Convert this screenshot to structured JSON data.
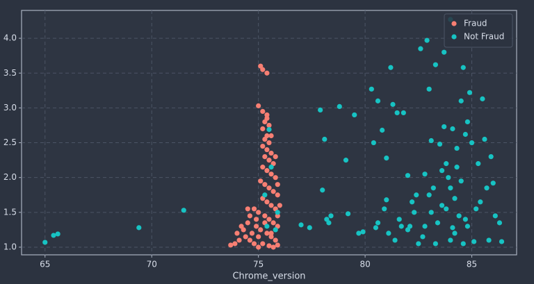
{
  "chart_data": {
    "type": "scatter",
    "xlabel": "Chrome_version",
    "xlim": [
      63.9,
      87.1
    ],
    "ylim": [
      0.89,
      4.4
    ],
    "xticks": [
      65,
      70,
      75,
      80,
      85
    ],
    "yticks": [
      {
        "value": 1,
        "label": "1.0"
      },
      1.5,
      {
        "value": 2,
        "label": "2.0"
      },
      2.5,
      {
        "value": 3,
        "label": "3.0"
      },
      3.5,
      {
        "value": 4,
        "label": "4.0"
      }
    ],
    "grid": true,
    "legend": "upper right",
    "series": [
      {
        "name": "Fraud",
        "color": "#f77f73",
        "x": [
          75.1,
          75.2,
          75.4,
          75.0,
          75.2,
          75.4,
          75.3,
          75.5,
          75.2,
          75.4,
          75.3,
          75.5,
          75.2,
          75.4,
          75.6,
          75.3,
          75.5,
          75.7,
          75.2,
          75.4,
          75.6,
          75.8,
          75.1,
          75.3,
          75.5,
          75.7,
          75.9,
          75.2,
          75.4,
          75.6,
          75.8,
          75.0,
          75.3,
          75.5,
          75.7,
          75.9,
          75.1,
          75.4,
          75.6,
          75.8,
          75.2,
          75.5,
          75.9,
          75.7,
          75.0,
          74.8,
          74.6,
          74.4,
          74.7,
          74.9,
          74.5,
          74.3,
          74.1,
          73.9,
          73.7,
          74.0,
          74.2,
          74.6,
          74.8,
          74.5,
          74.9,
          75.9,
          76.0,
          75.8,
          75.6,
          75.4,
          75.6,
          75.0,
          75.3,
          75.9
        ],
        "values": [
          3.6,
          3.55,
          3.5,
          3.03,
          2.95,
          2.9,
          2.8,
          2.75,
          2.7,
          2.6,
          2.55,
          2.5,
          2.45,
          2.4,
          2.35,
          2.3,
          2.25,
          2.2,
          2.15,
          2.1,
          2.05,
          2.0,
          1.95,
          1.9,
          1.85,
          1.8,
          1.75,
          1.7,
          1.65,
          1.6,
          1.55,
          1.5,
          1.45,
          1.4,
          1.35,
          1.3,
          1.25,
          1.2,
          1.15,
          1.1,
          1.05,
          1.02,
          1.03,
          1.0,
          1.0,
          1.05,
          1.1,
          1.15,
          1.2,
          1.3,
          1.35,
          1.25,
          1.1,
          1.05,
          1.03,
          1.2,
          1.3,
          1.45,
          1.55,
          1.55,
          1.4,
          1.9,
          1.6,
          2.3,
          2.6,
          2.85,
          1.2,
          1.15,
          1.35,
          1.45
        ]
      },
      {
        "name": "Not Fraud",
        "color": "#17c3c3",
        "x": [
          65.0,
          65.4,
          65.6,
          69.4,
          71.5,
          75.5,
          75.6,
          75.3,
          75.9,
          75.4,
          75.8,
          77.0,
          77.4,
          77.9,
          78.0,
          78.1,
          78.2,
          78.3,
          78.4,
          78.8,
          79.1,
          79.2,
          79.5,
          79.7,
          79.9,
          80.3,
          80.4,
          80.5,
          80.6,
          80.8,
          81.0,
          81.0,
          81.1,
          81.2,
          81.3,
          81.5,
          81.6,
          81.8,
          82.0,
          82.0,
          82.2,
          82.4,
          82.5,
          82.6,
          82.9,
          82.8,
          83.0,
          83.0,
          83.1,
          83.2,
          83.3,
          83.5,
          83.6,
          83.7,
          83.7,
          83.8,
          83.9,
          84.0,
          84.0,
          84.1,
          84.2,
          84.3,
          84.4,
          84.5,
          84.5,
          84.6,
          84.7,
          84.8,
          84.8,
          84.9,
          85.0,
          85.1,
          85.2,
          85.3,
          85.4,
          85.5,
          85.6,
          85.7,
          85.9,
          86.0,
          86.1,
          86.3,
          86.4,
          82.1,
          82.7,
          83.4,
          84.2,
          84.6,
          83.1,
          82.3,
          81.4,
          80.9,
          83.8,
          84.0,
          83.6,
          84.3,
          84.7,
          82.8,
          83.3,
          81.7,
          80.6,
          85.8,
          84.1
        ],
        "values": [
          1.07,
          1.17,
          1.19,
          1.28,
          1.53,
          2.69,
          2.15,
          1.75,
          1.5,
          1.3,
          1.25,
          1.32,
          1.28,
          2.97,
          1.82,
          2.55,
          1.4,
          1.35,
          1.45,
          3.02,
          2.25,
          1.48,
          2.9,
          1.2,
          1.22,
          3.27,
          2.5,
          1.28,
          3.1,
          2.68,
          2.28,
          1.68,
          1.2,
          3.58,
          3.05,
          2.93,
          1.4,
          2.93,
          1.25,
          2.03,
          1.65,
          1.75,
          1.05,
          3.85,
          3.97,
          2.05,
          1.75,
          3.27,
          2.53,
          1.85,
          3.62,
          2.48,
          2.1,
          3.8,
          2.73,
          1.55,
          2.0,
          4.27,
          1.1,
          2.7,
          1.7,
          2.42,
          1.45,
          3.1,
          1.95,
          3.58,
          2.62,
          1.3,
          2.8,
          3.22,
          2.5,
          1.08,
          1.55,
          2.2,
          1.65,
          3.13,
          2.55,
          1.85,
          2.3,
          1.92,
          1.45,
          1.35,
          1.08,
          1.3,
          1.15,
          1.35,
          1.2,
          1.05,
          1.5,
          1.5,
          1.1,
          1.55,
          2.2,
          1.85,
          1.6,
          2.15,
          1.4,
          1.3,
          1.05,
          1.3,
          1.35,
          1.1,
          1.28
        ]
      }
    ]
  }
}
